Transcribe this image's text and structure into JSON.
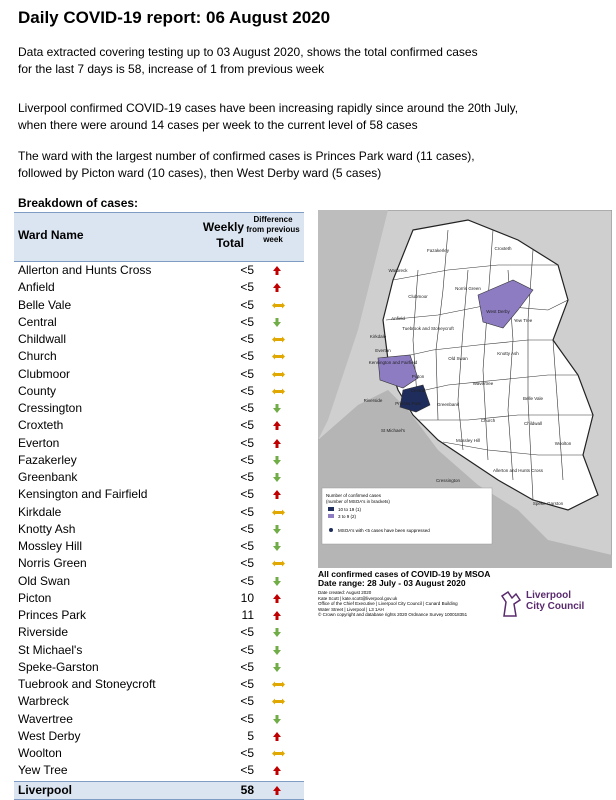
{
  "header": {
    "title": "Daily COVID-19 report: 06 August 2020"
  },
  "paragraphs": [
    [
      "Data extracted covering testing up to 03 August 2020, shows the total confirmed cases",
      "for the last 7 days is 58, increase of 1 from previous week"
    ],
    [
      "Liverpool confirmed COVID-19 cases have been increasing rapidly since around the 20th July,",
      "when there were around 14 cases per week to the current level of 58 cases"
    ],
    [
      "The ward with the largest number of confirmed cases is Princes Park ward (11 cases),",
      "followed by Picton ward (10 cases), then West Derby ward (5 cases)"
    ]
  ],
  "table": {
    "caption": "Breakdown of cases:",
    "headers": [
      "Ward Name",
      [
        "Weekly",
        "Total"
      ],
      [
        "Difference",
        "from previous",
        "week"
      ]
    ],
    "rows": [
      [
        "Allerton and Hunts Cross",
        "<5",
        "up"
      ],
      [
        "Anfield",
        "<5",
        "up"
      ],
      [
        "Belle Vale",
        "<5",
        "flat"
      ],
      [
        "Central",
        "<5",
        "down"
      ],
      [
        "Childwall",
        "<5",
        "flat"
      ],
      [
        "Church",
        "<5",
        "flat"
      ],
      [
        "Clubmoor",
        "<5",
        "flat"
      ],
      [
        "County",
        "<5",
        "flat"
      ],
      [
        "Cressington",
        "<5",
        "down"
      ],
      [
        "Croxteth",
        "<5",
        "up"
      ],
      [
        "Everton",
        "<5",
        "up"
      ],
      [
        "Fazakerley",
        "<5",
        "down"
      ],
      [
        "Greenbank",
        "<5",
        "down"
      ],
      [
        "Kensington and Fairfield",
        "<5",
        "up"
      ],
      [
        "Kirkdale",
        "<5",
        "flat"
      ],
      [
        "Knotty Ash",
        "<5",
        "down"
      ],
      [
        "Mossley Hill",
        "<5",
        "down"
      ],
      [
        "Norris Green",
        "<5",
        "flat"
      ],
      [
        "Old Swan",
        "<5",
        "down"
      ],
      [
        "Picton",
        10,
        "up"
      ],
      [
        "Princes Park",
        11,
        "up"
      ],
      [
        "Riverside",
        "<5",
        "down"
      ],
      [
        "St Michael's",
        "<5",
        "down"
      ],
      [
        "Speke-Garston",
        "<5",
        "down"
      ],
      [
        "Tuebrook and Stoneycroft",
        "<5",
        "flat"
      ],
      [
        "Warbreck",
        "<5",
        "flat"
      ],
      [
        "Wavertree",
        "<5",
        "down"
      ],
      [
        "West Derby",
        5,
        "up"
      ],
      [
        "Woolton",
        "<5",
        "flat"
      ],
      [
        "Yew Tree",
        "<5",
        "up"
      ]
    ],
    "total": [
      "Liverpool",
      58,
      "up"
    ]
  },
  "map": {
    "labels": [
      "Fazakerley",
      "Croxteth",
      "Warbreck",
      "Clubmoor",
      "Norris Green",
      "Anfield",
      "Kirkdale",
      "West Derby",
      "Yew Tree",
      "Tuebrook and Stoneycroft",
      "Everton",
      "Kensington and Fairfield",
      "Old Swan",
      "Knotty Ash",
      "Picton",
      "Wavertree",
      "Riverside",
      "Princes Park",
      "Central",
      "Greenbank",
      "Belle Vale",
      "St Michael's",
      "Church",
      "Childwall",
      "Mossley Hill",
      "Allerton and Hunts Cross",
      "Woolton",
      "Cressington",
      "Speke-Garston"
    ],
    "legend": {
      "title": [
        "Number of confirmed cases",
        "(number of MSOA's in brackets)"
      ],
      "items": [
        "10 to 19 (1)",
        "3 to 9 (2)"
      ],
      "note": "MSOA's with <5 cases have been suppressed"
    },
    "caption": [
      "All confirmed cases of COVID-19 by MSOA",
      "Date range: 28 July - 03 August 2020"
    ],
    "credits": [
      "Date created: August 2020",
      "Kate Scott | kate.scott@liverpool.gov.uk",
      "Office of the Chief Executive | Liverpool City Council | Cunard Building",
      "Water Street | Liverpool | L3 1AH",
      "© Crown copyright and database rights 2020 Ordnance Survey 100018351"
    ]
  },
  "logo": [
    "Liverpool",
    "City Council"
  ]
}
